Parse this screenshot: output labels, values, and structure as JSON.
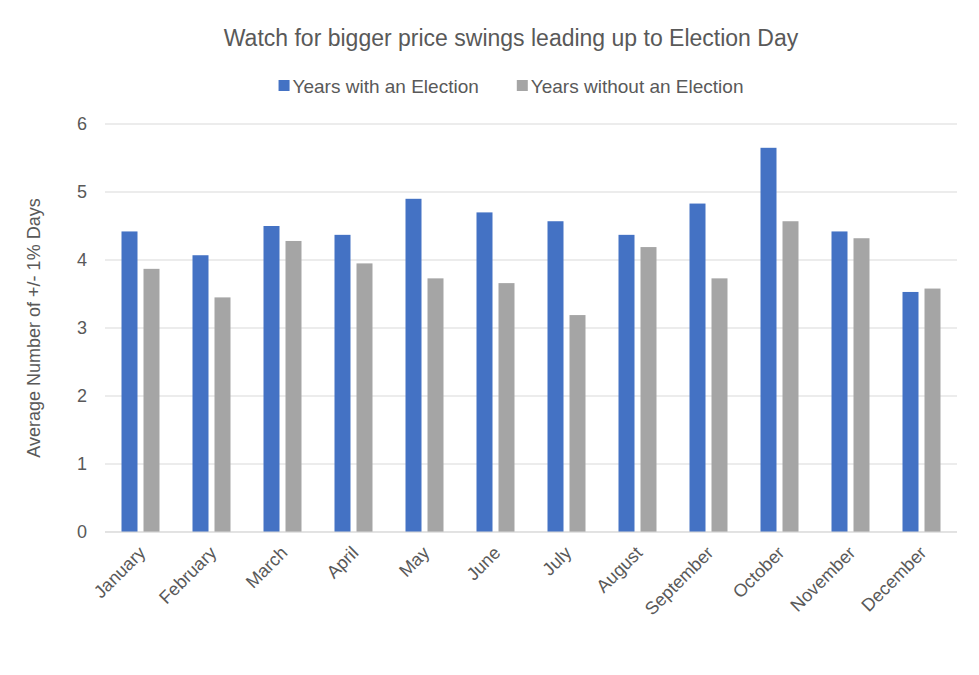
{
  "chart_data": {
    "type": "bar",
    "title": "Watch for bigger price swings leading up to Election Day",
    "y_label": "Average Number of +/- 1% Days",
    "categories": [
      "January",
      "February",
      "March",
      "April",
      "May",
      "June",
      "July",
      "August",
      "September",
      "October",
      "November",
      "December"
    ],
    "series": [
      {
        "name": "Years with an Election",
        "color": "#4472c4",
        "values": [
          4.42,
          4.07,
          4.5,
          4.37,
          4.9,
          4.7,
          4.57,
          4.37,
          4.83,
          5.65,
          4.42,
          3.53
        ]
      },
      {
        "name": "Years without an Election",
        "color": "#a5a5a5",
        "values": [
          3.87,
          3.45,
          4.28,
          3.95,
          3.73,
          3.66,
          3.19,
          4.19,
          3.73,
          4.57,
          4.32,
          3.58
        ]
      }
    ],
    "ylim": [
      0,
      6
    ],
    "yticks": [
      0,
      1,
      2,
      3,
      4,
      5,
      6
    ],
    "grid": true,
    "legend": "top"
  }
}
